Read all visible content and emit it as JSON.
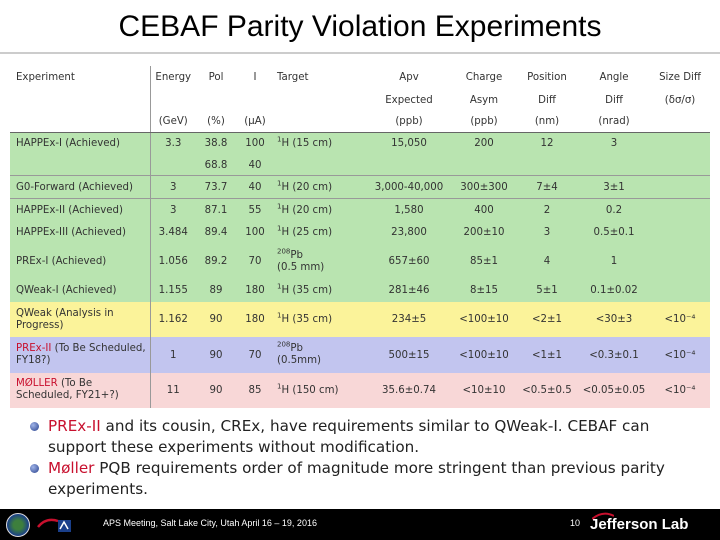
{
  "title": "CEBAF Parity Violation Experiments",
  "header": {
    "row1": [
      "Experiment",
      "Energy",
      "Pol",
      "I",
      "Target",
      "Apv",
      "Charge",
      "Position",
      "Angle",
      "Size Diff"
    ],
    "row2": [
      "",
      "",
      "",
      "",
      "",
      "Expected",
      "Asym",
      "Diff",
      "Diff",
      "(δσ/σ)"
    ],
    "units": [
      "",
      "(GeV)",
      "(%)",
      "(μA)",
      "",
      "(ppb)",
      "(ppb)",
      "(nm)",
      "(nrad)",
      ""
    ]
  },
  "rows": [
    {
      "name": "HAPPEx-I (Achieved)",
      "energy": "3.3",
      "pol": "38.8",
      "current": "100",
      "target_sup": "1",
      "target": "H (15 cm)",
      "apv": "15,050",
      "charge": "200",
      "position": "12",
      "angle": "3",
      "size": ""
    },
    {
      "name": "",
      "energy": "",
      "pol": "68.8",
      "current": "40",
      "target_sup": "",
      "target": "",
      "apv": "",
      "charge": "",
      "position": "",
      "angle": "",
      "size": ""
    },
    {
      "name": "G0-Forward (Achieved)",
      "energy": "3",
      "pol": "73.7",
      "current": "40",
      "target_sup": "1",
      "target": "H (20 cm)",
      "apv": "3,000-40,000",
      "charge": "300±300",
      "position": "7±4",
      "angle": "3±1",
      "size": ""
    },
    {
      "name": "HAPPEx-II (Achieved)",
      "energy": "3",
      "pol": "87.1",
      "current": "55",
      "target_sup": "1",
      "target": "H (20 cm)",
      "apv": "1,580",
      "charge": "400",
      "position": "2",
      "angle": "0.2",
      "size": ""
    },
    {
      "name": "HAPPEx-III (Achieved)",
      "energy": "3.484",
      "pol": "89.4",
      "current": "100",
      "target_sup": "1",
      "target": "H (25 cm)",
      "apv": "23,800",
      "charge": "200±10",
      "position": "3",
      "angle": "0.5±0.1",
      "size": ""
    },
    {
      "name": "PREx-I (Achieved)",
      "energy": "1.056",
      "pol": "89.2",
      "current": "70",
      "target_sup": "208",
      "target": "Pb",
      "target2": "(0.5 mm)",
      "apv": "657±60",
      "charge": "85±1",
      "position": "4",
      "angle": "1",
      "size": ""
    },
    {
      "name": "QWeak-I (Achieved)",
      "energy": "1.155",
      "pol": "89",
      "current": "180",
      "target_sup": "1",
      "target": "H (35 cm)",
      "apv": "281±46",
      "charge": "8±15",
      "position": "5±1",
      "angle": "0.1±0.02",
      "size": ""
    },
    {
      "name": "QWeak (Analysis in Progress)",
      "energy": "1.162",
      "pol": "90",
      "current": "180",
      "target_sup": "1",
      "target": "H (35 cm)",
      "apv": "234±5",
      "charge": "<100±10",
      "position": "<2±1",
      "angle": "<30±3",
      "size": "<10⁻⁴"
    },
    {
      "name_accent": "PREx-II",
      "name_rest": "(To Be Scheduled, FY18?)",
      "energy": "1",
      "pol": "90",
      "current": "70",
      "target_sup": "208",
      "target": "Pb",
      "target2": "(0.5mm)",
      "apv": "500±15",
      "charge": "<100±10",
      "position": "<1±1",
      "angle": "<0.3±0.1",
      "size": "<10⁻⁴"
    },
    {
      "name_accent": "MØLLER",
      "name_rest": "(To Be Scheduled, FY21+?)",
      "energy": "11",
      "pol": "90",
      "current": "85",
      "target_sup": "1",
      "target": "H (150 cm)",
      "apv": "35.6±0.74",
      "charge": "<10±10",
      "position": "<0.5±0.5",
      "angle": "<0.05±0.05",
      "size": "<10⁻⁴"
    }
  ],
  "bullets": [
    {
      "accent": "PREx-II",
      "text": " and its cousin, CREx, have requirements similar to QWeak-I. CEBAF can support these experiments without modification."
    },
    {
      "accent": "Møller",
      "text": " PQB requirements order of magnitude more stringent than previous parity experiments."
    }
  ],
  "footer": {
    "meeting": "APS Meeting, Salt Lake City, Utah April 16 – 19, 2016",
    "page": "10",
    "lab": "Jefferson Lab"
  },
  "colors": {
    "achieved": "#b9e4b0",
    "in_progress": "#fbf39a",
    "prex2": "#c2c5ef",
    "moller": "#f8d7d7",
    "accent": "#c8102e"
  }
}
